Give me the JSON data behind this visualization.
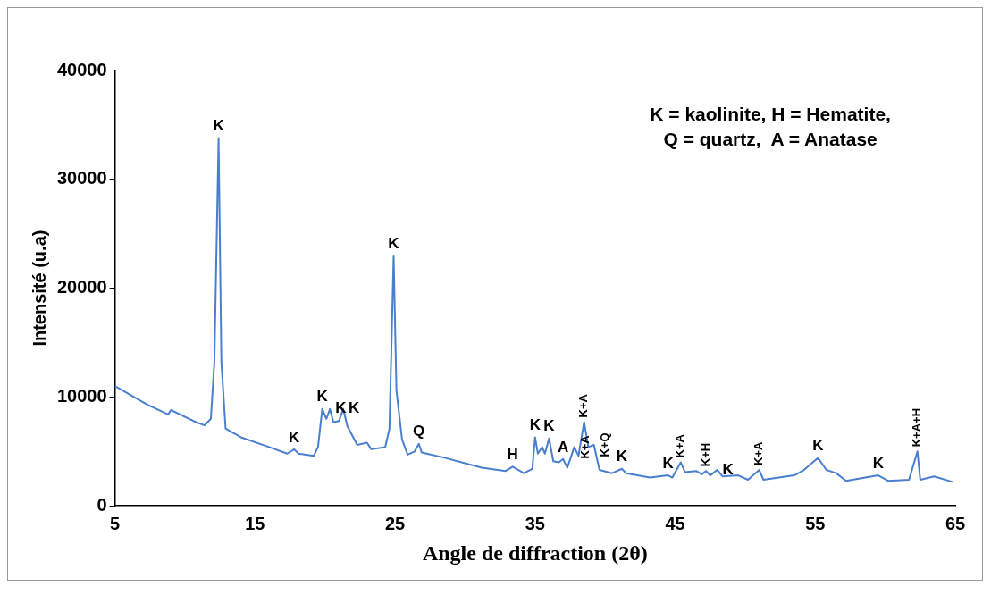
{
  "chart_data": {
    "type": "line",
    "xlabel": "Angle de diffraction (2θ)",
    "ylabel": "Intensité (u.a)",
    "xlim": [
      5,
      65
    ],
    "xticks": [
      5,
      15,
      25,
      35,
      45,
      55,
      65
    ],
    "ylim": [
      0,
      40000
    ],
    "yticks": [
      0,
      10000,
      20000,
      30000,
      40000
    ],
    "grid": false,
    "legend": false,
    "series": [
      {
        "color": "#4a7fcf",
        "x": [
          5,
          7.3,
          8.8,
          9,
          10.6,
          11.4,
          11.85,
          12.1,
          12.4,
          12.6,
          12.9,
          14,
          16,
          17.3,
          17.8,
          18.1,
          19.2,
          19.5,
          19.8,
          20.1,
          20.35,
          20.6,
          21,
          21.3,
          21.6,
          22.3,
          23,
          23.3,
          24.3,
          24.6,
          24.9,
          25.1,
          25.5,
          25.9,
          26.4,
          26.7,
          26.9,
          28.6,
          31.2,
          32.9,
          33.4,
          34.2,
          34.8,
          35,
          35.2,
          35.5,
          35.7,
          36,
          36.3,
          36.7,
          37,
          37.3,
          37.8,
          38.1,
          38.5,
          38.8,
          39.2,
          39.6,
          40.5,
          41.2,
          41.5,
          43.2,
          44.5,
          44.8,
          45.4,
          45.7,
          46.5,
          46.9,
          47.2,
          47.5,
          48,
          48.4,
          49.5,
          50.2,
          51,
          51.3,
          53.5,
          54.2,
          55.2,
          55.8,
          56.5,
          57.2,
          59.5,
          60.2,
          61.7,
          62.3,
          62.5,
          63.5,
          64.8
        ],
        "values": [
          11000,
          9300,
          8400,
          8800,
          7800,
          7400,
          8000,
          13200,
          33800,
          13200,
          7100,
          6300,
          5400,
          4800,
          5200,
          4800,
          4600,
          5400,
          8900,
          8000,
          8900,
          7700,
          7800,
          8900,
          7300,
          5600,
          5800,
          5200,
          5400,
          7100,
          23000,
          10600,
          6100,
          4700,
          5000,
          5700,
          4900,
          4400,
          3500,
          3200,
          3600,
          3000,
          3400,
          6300,
          4800,
          5400,
          4800,
          6200,
          4100,
          4000,
          4300,
          3500,
          5400,
          4600,
          7700,
          5400,
          5600,
          3300,
          3000,
          3400,
          3000,
          2600,
          2800,
          2600,
          4000,
          3100,
          3200,
          2900,
          3200,
          2800,
          3300,
          2700,
          2800,
          2400,
          3300,
          2400,
          2800,
          3300,
          4400,
          3300,
          3000,
          2300,
          2800,
          2300,
          2400,
          5000,
          2400,
          2700,
          2200
        ]
      }
    ],
    "annotations": [
      "K = kaolinite, H = Hematite,",
      "Q = quartz,  A = Anatase",
      {
        "text": "K",
        "x": 12.4,
        "y": 33800
      },
      {
        "text": "K",
        "x": 17.8,
        "y": 5200
      },
      {
        "text": "K",
        "x": 19.8,
        "y": 8900
      },
      {
        "text": "K",
        "x": 20.35,
        "y": 8900
      },
      {
        "text": "K",
        "x": 21.3,
        "y": 8900
      },
      {
        "text": "K",
        "x": 24.9,
        "y": 23000
      },
      {
        "text": "Q",
        "x": 26.7,
        "y": 5700
      },
      {
        "text": "H",
        "x": 33.4,
        "y": 3600
      },
      {
        "text": "K",
        "x": 35,
        "y": 6300
      },
      {
        "text": "K",
        "x": 36,
        "y": 6200
      },
      {
        "text": "A",
        "x": 37,
        "y": 4300
      },
      {
        "text": "K+A",
        "x": 37.8,
        "y": 5400
      },
      {
        "text": "K+A",
        "x": 38.5,
        "y": 7700
      },
      {
        "text": "K+Q",
        "x": 39.2,
        "y": 5600
      },
      {
        "text": "K",
        "x": 41.2,
        "y": 3400
      },
      {
        "text": "K",
        "x": 44.5,
        "y": 2800
      },
      {
        "text": "K+A",
        "x": 45.4,
        "y": 4000
      },
      {
        "text": "K+H",
        "x": 47.2,
        "y": 3200
      },
      {
        "text": "K",
        "x": 48,
        "y": 3300
      },
      {
        "text": "K+A",
        "x": 51,
        "y": 3300
      },
      {
        "text": "K",
        "x": 55.2,
        "y": 4400
      },
      {
        "text": "K",
        "x": 59.5,
        "y": 2800
      },
      {
        "text": "K+A+H",
        "x": 62.3,
        "y": 5000
      }
    ]
  }
}
